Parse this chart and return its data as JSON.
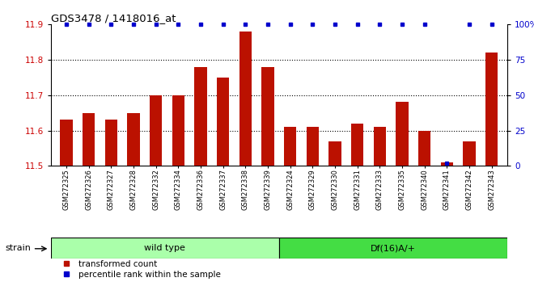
{
  "title": "GDS3478 / 1418016_at",
  "samples": [
    "GSM272325",
    "GSM272326",
    "GSM272327",
    "GSM272328",
    "GSM272332",
    "GSM272334",
    "GSM272336",
    "GSM272337",
    "GSM272338",
    "GSM272339",
    "GSM272324",
    "GSM272329",
    "GSM272330",
    "GSM272331",
    "GSM272333",
    "GSM272335",
    "GSM272340",
    "GSM272341",
    "GSM272342",
    "GSM272343"
  ],
  "bar_values": [
    11.63,
    11.65,
    11.63,
    11.65,
    11.7,
    11.7,
    11.78,
    11.75,
    11.88,
    11.78,
    11.61,
    11.61,
    11.57,
    11.62,
    11.61,
    11.68,
    11.6,
    11.51,
    11.57,
    11.82
  ],
  "percentile_values": [
    100,
    100,
    100,
    100,
    100,
    100,
    100,
    100,
    100,
    100,
    100,
    100,
    100,
    100,
    100,
    100,
    100,
    2,
    100,
    100
  ],
  "group_labels": [
    "wild type",
    "Df(16)A/+"
  ],
  "group_sizes": [
    10,
    10
  ],
  "group_colors": [
    "#aaffaa",
    "#44dd44"
  ],
  "ylim_left": [
    11.5,
    11.9
  ],
  "ylim_right": [
    0,
    100
  ],
  "yticks_left": [
    11.5,
    11.6,
    11.7,
    11.8,
    11.9
  ],
  "yticks_right": [
    0,
    25,
    50,
    75,
    100
  ],
  "bar_color": "#BB1100",
  "dot_color": "#0000CC",
  "background_color": "#FFFFFF",
  "tick_label_color_left": "#CC0000",
  "tick_label_color_right": "#0000CC",
  "legend_items": [
    "transformed count",
    "percentile rank within the sample"
  ],
  "legend_colors": [
    "#BB1100",
    "#0000CC"
  ],
  "strain_label": "strain",
  "dotted_gridlines": [
    11.6,
    11.7,
    11.8
  ],
  "bar_width": 0.55
}
